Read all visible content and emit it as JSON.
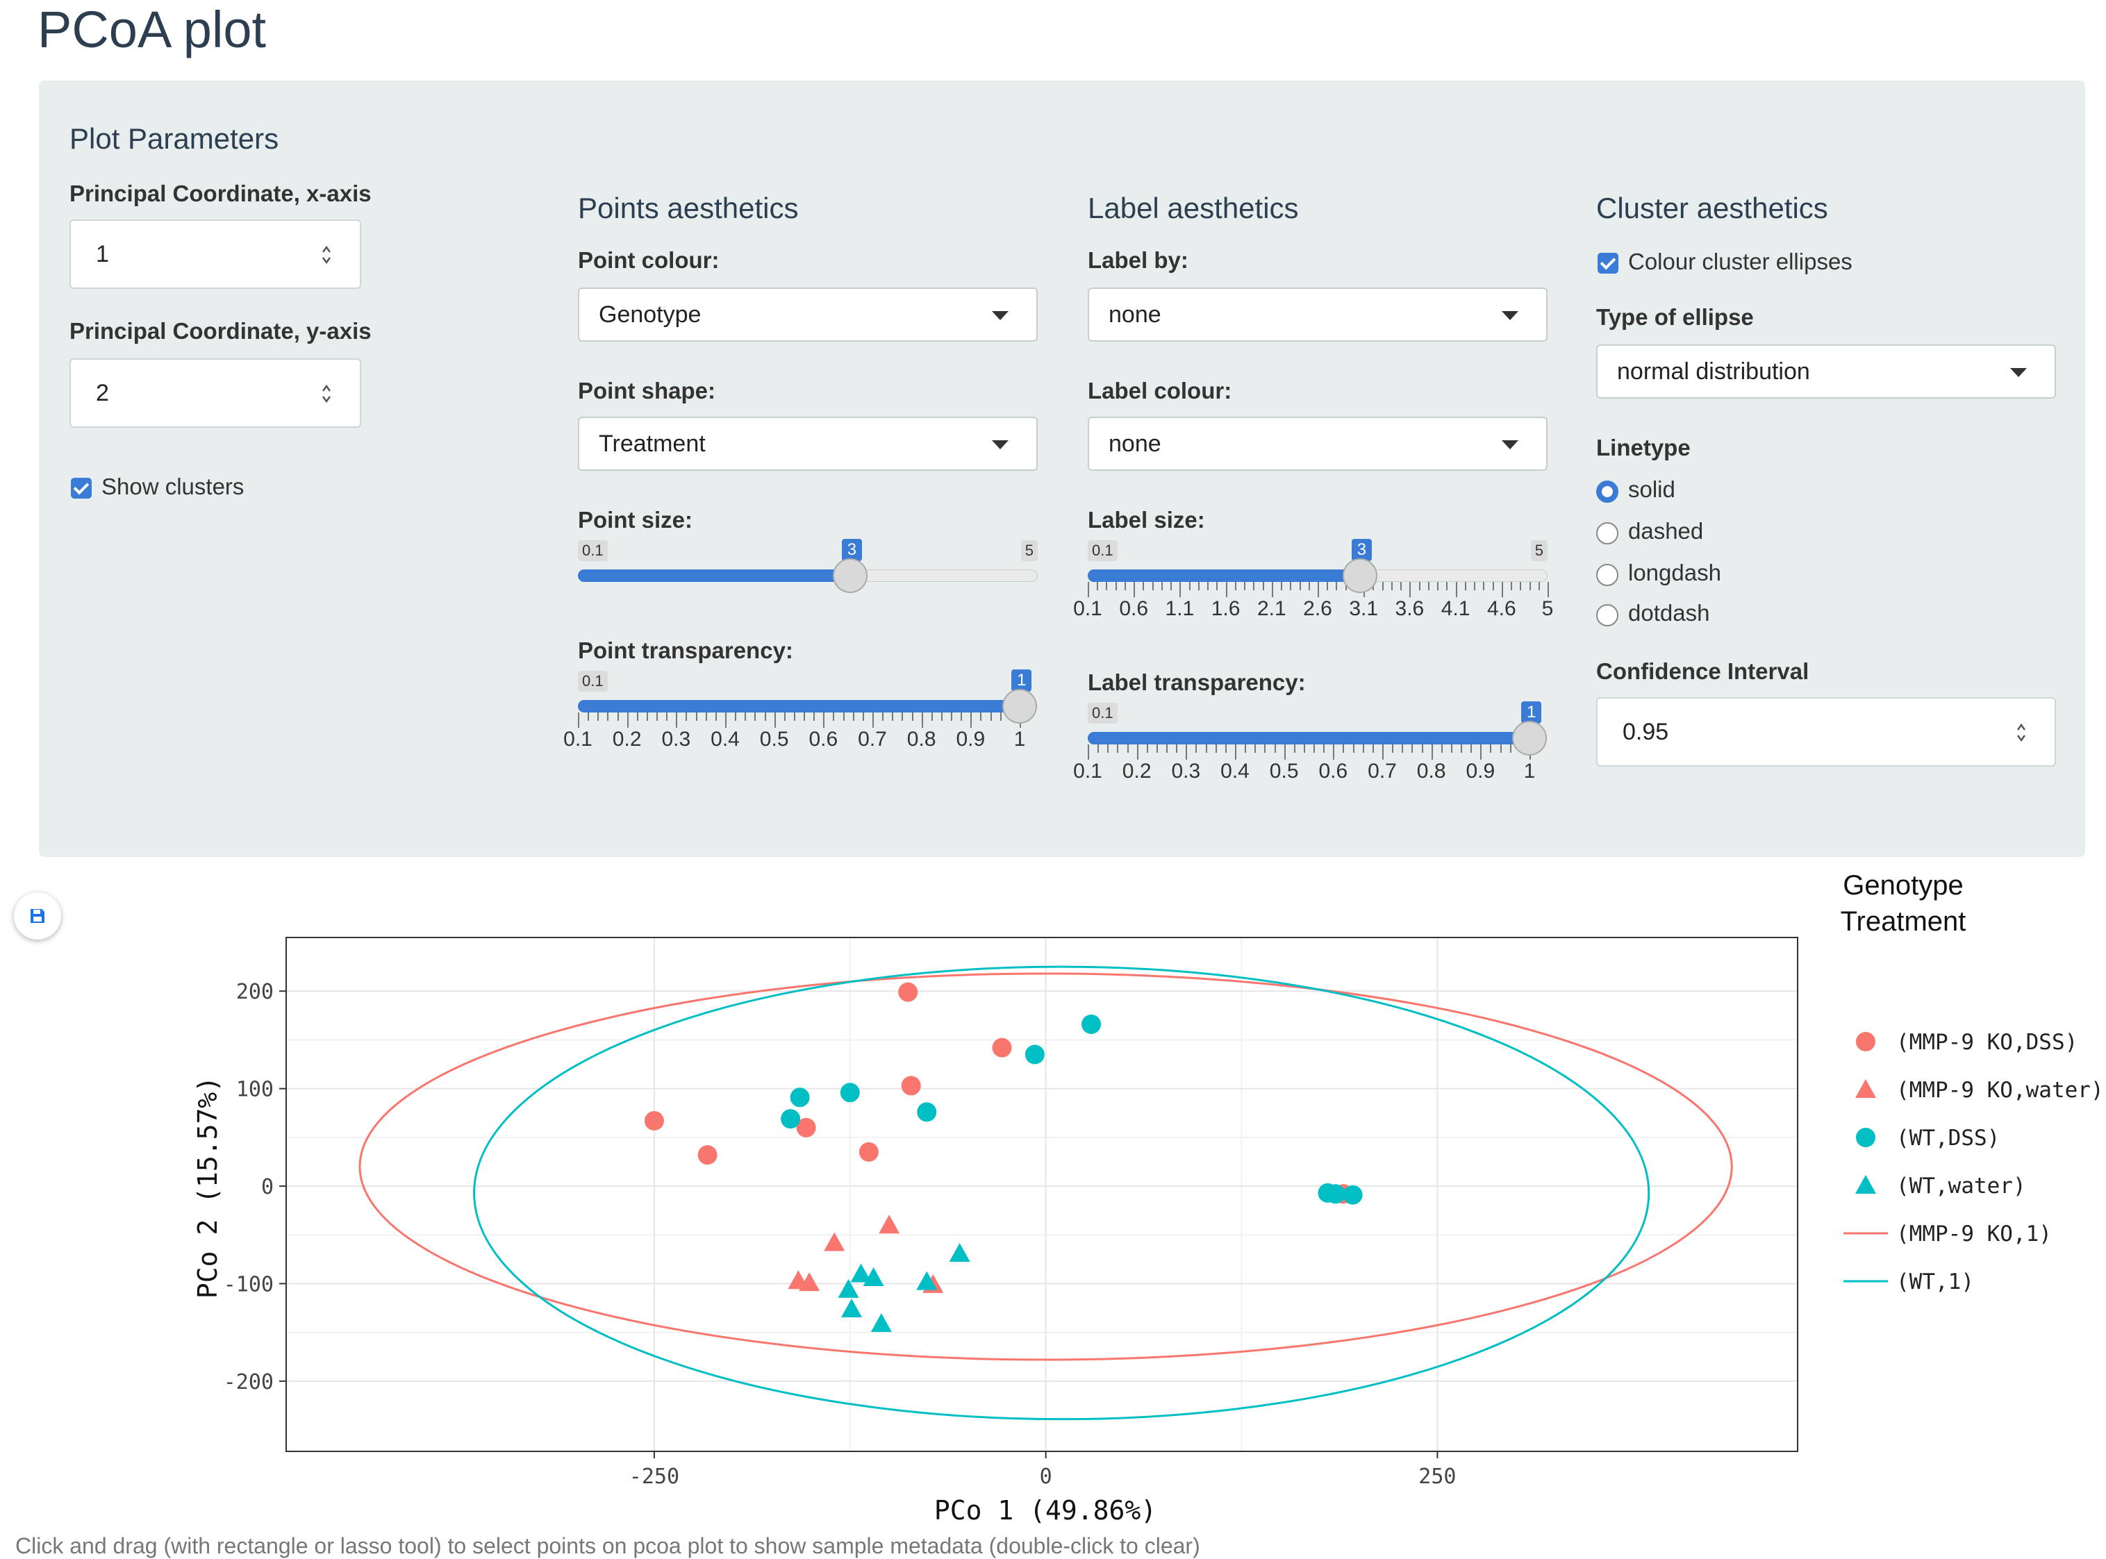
{
  "page": {
    "title": "PCoA plot"
  },
  "plot_params": {
    "heading": "Plot Parameters",
    "x_label": "Principal Coordinate, x-axis",
    "x_value": "1",
    "y_label": "Principal Coordinate, y-axis",
    "y_value": "2",
    "show_clusters_label": "Show clusters",
    "show_clusters": true
  },
  "points": {
    "heading": "Points aesthetics",
    "colour_label": "Point colour:",
    "colour_value": "Genotype",
    "shape_label": "Point shape:",
    "shape_value": "Treatment",
    "size_label": "Point size:",
    "size_slider": {
      "min": "0.1",
      "max": "5",
      "value": "3",
      "fraction": 0.5918
    },
    "transparency_label": "Point transparency:",
    "transparency_slider": {
      "min": "0.1",
      "value": "1",
      "fraction": 1.0,
      "ticks": [
        "0.1",
        "0.2",
        "0.3",
        "0.4",
        "0.5",
        "0.6",
        "0.7",
        "0.8",
        "0.9",
        "1"
      ]
    }
  },
  "labels": {
    "heading": "Label aesthetics",
    "by_label": "Label by:",
    "by_value": "none",
    "colour_label": "Label colour:",
    "colour_value": "none",
    "size_label": "Label size:",
    "size_slider": {
      "min": "0.1",
      "max": "5",
      "value": "3",
      "fraction": 0.5918,
      "ticks": [
        "0.1",
        "0.6",
        "1.1",
        "1.6",
        "2.1",
        "2.6",
        "3.1",
        "3.6",
        "4.1",
        "4.6",
        "5"
      ]
    },
    "transparency_label": "Label transparency:",
    "transparency_slider": {
      "min": "0.1",
      "value": "1",
      "fraction": 1.0,
      "ticks": [
        "0.1",
        "0.2",
        "0.3",
        "0.4",
        "0.5",
        "0.6",
        "0.7",
        "0.8",
        "0.9",
        "1"
      ]
    }
  },
  "cluster": {
    "heading": "Cluster aesthetics",
    "colour_ellipses_label": "Colour cluster ellipses",
    "colour_ellipses": true,
    "type_label": "Type of ellipse",
    "type_value": "normal distribution",
    "linetype_label": "Linetype",
    "linetypes": [
      "solid",
      "dashed",
      "longdash",
      "dotdash"
    ],
    "linetype_selected": "solid",
    "ci_label": "Confidence Interval",
    "ci_value": "0.95"
  },
  "caption": "Click and drag (with rectangle or lasso tool) to select points on pcoa plot to show sample metadata (double-click to clear)",
  "colors": {
    "ko": "#f8766d",
    "wt": "#00bfc4",
    "accent": "#3a7bd5"
  },
  "icons": {
    "save": "floppy-disk-icon"
  },
  "chart_data": {
    "type": "scatter",
    "xlabel": "PCo 1 (49.86%)",
    "ylabel": "PCo 2 (15.57%)",
    "xlim": [
      -485,
      480
    ],
    "ylim": [
      -272,
      255
    ],
    "xticks": [
      -250,
      0,
      250
    ],
    "yticks": [
      -200,
      -100,
      0,
      100,
      200
    ],
    "grid": true,
    "legend_title_lines": [
      "Genotype",
      "Treatment"
    ],
    "legend_position": "right",
    "series": [
      {
        "name": "(MMP-9 KO,DSS)",
        "color": "#f8766d",
        "shape": "circle",
        "points": [
          [
            -88,
            199
          ],
          [
            -28,
            142
          ],
          [
            -86,
            103
          ],
          [
            -250,
            67
          ],
          [
            -216,
            32
          ],
          [
            -153,
            60
          ],
          [
            -113,
            35
          ],
          [
            190,
            -8
          ]
        ]
      },
      {
        "name": "(MMP-9 KO,water)",
        "color": "#f8766d",
        "shape": "triangle",
        "points": [
          [
            -135,
            -58
          ],
          [
            -100,
            -40
          ],
          [
            -158,
            -97
          ],
          [
            -151,
            -99
          ],
          [
            -72,
            -101
          ]
        ]
      },
      {
        "name": "(WT,DSS)",
        "color": "#00bfc4",
        "shape": "circle",
        "points": [
          [
            -157,
            91
          ],
          [
            -125,
            96
          ],
          [
            -163,
            69
          ],
          [
            -76,
            76
          ],
          [
            -7,
            135
          ],
          [
            29,
            166
          ],
          [
            180,
            -7
          ],
          [
            185,
            -8
          ],
          [
            196,
            -9
          ]
        ]
      },
      {
        "name": "(WT,water)",
        "color": "#00bfc4",
        "shape": "triangle",
        "points": [
          [
            -118,
            -90
          ],
          [
            -110,
            -94
          ],
          [
            -126,
            -106
          ],
          [
            -124,
            -126
          ],
          [
            -105,
            -141
          ],
          [
            -76,
            -98
          ],
          [
            -55,
            -69
          ]
        ]
      },
      {
        "name": "(MMP-9 KO,1)",
        "color": "#f8766d",
        "type": "ellipse",
        "center": [
          0,
          20
        ],
        "rx": 438,
        "ry": 198
      },
      {
        "name": "(WT,1)",
        "color": "#00bfc4",
        "type": "ellipse",
        "center": [
          10,
          -7
        ],
        "rx": 375,
        "ry": 232
      }
    ]
  }
}
